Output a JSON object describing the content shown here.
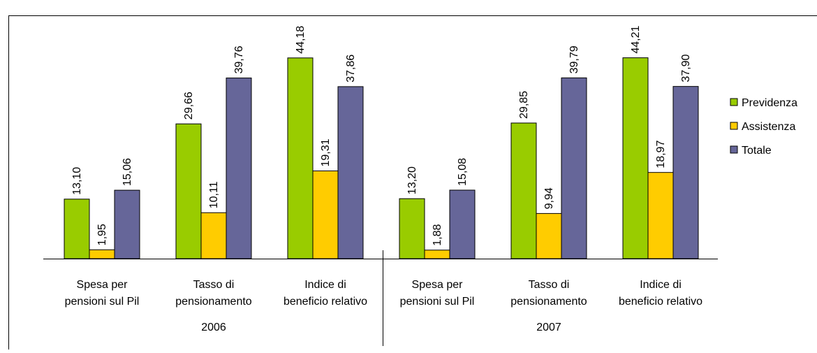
{
  "chart_data": {
    "type": "bar",
    "categories": [
      [
        "Spesa per",
        "pensioni sul Pil"
      ],
      [
        "Tasso di",
        "pensionamento"
      ],
      [
        "Indice di",
        "beneficio relativo"
      ],
      [
        "Spesa per",
        "pensioni sul Pil"
      ],
      [
        "Tasso di",
        "pensionamento"
      ],
      [
        "Indice di",
        "beneficio relativo"
      ]
    ],
    "group_labels": [
      "2006",
      "2007"
    ],
    "series": [
      {
        "name": "Previdenza",
        "color": "#99cc00",
        "values": [
          13.1,
          29.66,
          44.18,
          13.2,
          29.85,
          44.21
        ],
        "value_labels": [
          "13,10",
          "29,66",
          "44,18",
          "13,20",
          "29,85",
          "44,21"
        ]
      },
      {
        "name": "Assistenza",
        "color": "#ffcc00",
        "values": [
          1.95,
          10.11,
          19.31,
          1.88,
          9.94,
          18.97
        ],
        "value_labels": [
          "1,95",
          "10,11",
          "19,31",
          "1,88",
          "9,94",
          "18,97"
        ]
      },
      {
        "name": "Totale",
        "color": "#666699",
        "values": [
          15.06,
          39.76,
          37.86,
          15.08,
          39.79,
          37.9
        ],
        "value_labels": [
          "15,06",
          "39,76",
          "37,86",
          "15,08",
          "39,79",
          "37,90"
        ]
      }
    ],
    "legend": "right"
  }
}
